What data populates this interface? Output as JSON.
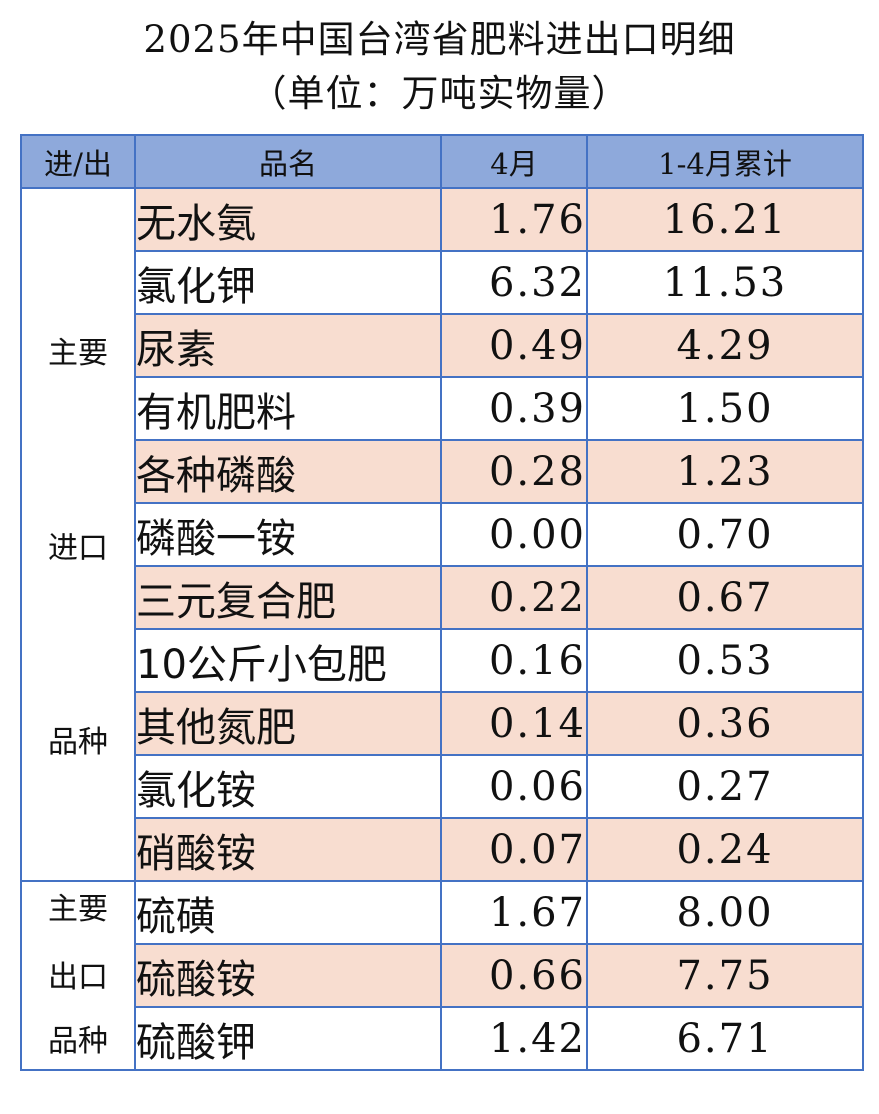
{
  "title": "2025年中国台湾省肥料进出口明细",
  "subtitle": "（单位：万吨实物量）",
  "columns": {
    "direction": "进/出",
    "name": "品名",
    "april": "4月",
    "cumulative": "1-4月累计"
  },
  "import_group": {
    "labels": [
      "主要",
      "进口",
      "品种"
    ],
    "rows": [
      {
        "name": "无水氨",
        "april": "1.76",
        "cumulative": "16.21"
      },
      {
        "name": "氯化钾",
        "april": "6.32",
        "cumulative": "11.53"
      },
      {
        "name": "尿素",
        "april": "0.49",
        "cumulative": "4.29"
      },
      {
        "name": "有机肥料",
        "april": "0.39",
        "cumulative": "1.50"
      },
      {
        "name": "各种磷酸",
        "april": "0.28",
        "cumulative": "1.23"
      },
      {
        "name": "磷酸一铵",
        "april": "0.00",
        "cumulative": "0.70"
      },
      {
        "name": "三元复合肥",
        "april": "0.22",
        "cumulative": "0.67"
      },
      {
        "name": "10公斤小包肥",
        "april": "0.16",
        "cumulative": "0.53"
      },
      {
        "name": "其他氮肥",
        "april": "0.14",
        "cumulative": "0.36"
      },
      {
        "name": "氯化铵",
        "april": "0.06",
        "cumulative": "0.27"
      },
      {
        "name": "硝酸铵",
        "april": "0.07",
        "cumulative": "0.24"
      }
    ]
  },
  "export_group": {
    "labels": [
      "主要",
      "出口",
      "品种"
    ],
    "rows": [
      {
        "name": "硫磺",
        "april": "1.67",
        "cumulative": "8.00"
      },
      {
        "name": "硫酸铵",
        "april": "0.66",
        "cumulative": "7.75"
      },
      {
        "name": "硫酸钾",
        "april": "1.42",
        "cumulative": "6.71"
      }
    ]
  },
  "colors": {
    "header_bg": "#8EA9DB",
    "row_shade": "#F8DDD0",
    "border": "#4472C4"
  }
}
